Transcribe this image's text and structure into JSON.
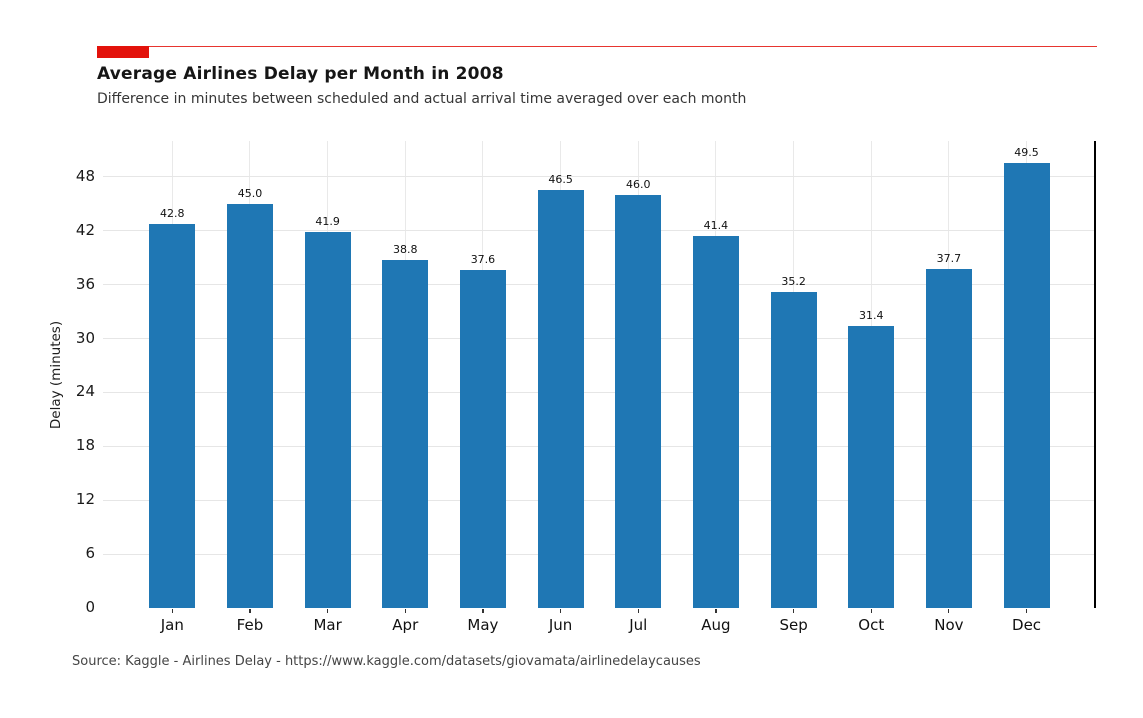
{
  "colors": {
    "accent_red": "#e3120b",
    "bar_blue": "#1f77b4",
    "grid": "#e6e6e6",
    "spine": "#000000"
  },
  "chart_data": {
    "type": "bar",
    "title": "Average Airlines Delay per Month in 2008",
    "subtitle": "Difference in minutes between scheduled and actual arrival time averaged over each month",
    "categories": [
      "Jan",
      "Feb",
      "Mar",
      "Apr",
      "May",
      "Jun",
      "Jul",
      "Aug",
      "Sep",
      "Oct",
      "Nov",
      "Dec"
    ],
    "values": [
      42.8,
      45.0,
      41.9,
      38.8,
      37.6,
      46.5,
      46.0,
      41.4,
      35.2,
      31.4,
      37.7,
      49.5
    ],
    "value_labels": [
      "42.8",
      "45.0",
      "41.9",
      "38.8",
      "37.6",
      "46.5",
      "46.0",
      "41.4",
      "35.2",
      "31.4",
      "37.7",
      "49.5"
    ],
    "xlabel": "",
    "ylabel": "Delay (minutes)",
    "ylim": [
      0,
      52
    ],
    "yticks": [
      0,
      6,
      12,
      18,
      24,
      30,
      36,
      42,
      48
    ],
    "grid": true,
    "legend": false,
    "bar_color": "#1f77b4"
  },
  "footer": {
    "source": "Source: Kaggle - Airlines Delay - https://www.kaggle.com/datasets/giovamata/airlinedelaycauses"
  }
}
